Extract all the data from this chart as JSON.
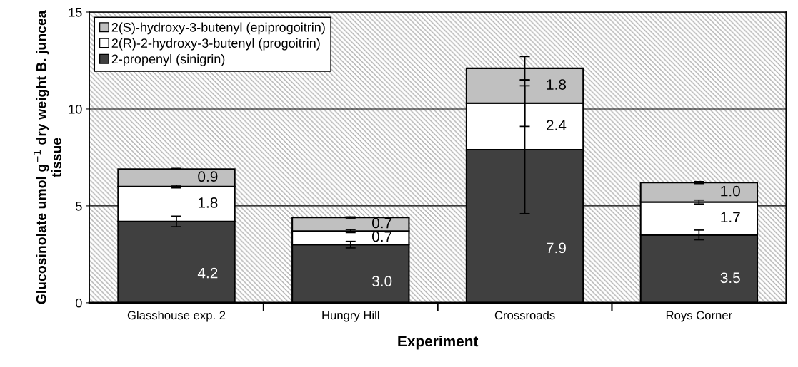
{
  "chart_data": {
    "type": "bar",
    "stacked": true,
    "xlabel": "Experiment",
    "ylabel": "Glucosinolate umol g$^{−1}$ dry weight B. juncea tissue",
    "categories": [
      "Glasshouse exp. 2",
      "Hungry Hill",
      "Crossroads",
      "Roys Corner"
    ],
    "series": [
      {
        "name": "2-propenyl (sinigrin)",
        "color": "#404040",
        "values": [
          4.2,
          3.0,
          7.9,
          3.5
        ],
        "value_labels": [
          "4.2",
          "3.0",
          "7.9",
          "3.5"
        ],
        "errors": [
          0.27,
          0.17,
          3.3,
          0.25
        ]
      },
      {
        "name": "2(R)-2-hydroxy-3-butenyl (progoitrin)",
        "color": "#ffffff",
        "values": [
          1.8,
          0.7,
          2.4,
          1.7
        ],
        "value_labels": [
          "1.8",
          "0.7",
          "2.4",
          "1.7"
        ],
        "errors": [
          0.07,
          0.08,
          1.2,
          0.1
        ]
      },
      {
        "name": "2(S)-hydroxy-3-butenyl (epiprogoitrin)",
        "color": "#c0c0c0",
        "values": [
          0.9,
          0.7,
          1.8,
          1.0
        ],
        "value_labels": [
          "0.9",
          "0.7",
          "1.8",
          "1.0"
        ],
        "errors": [
          0.03,
          0.03,
          0.6,
          0.05
        ]
      }
    ],
    "ylim": [
      0,
      15
    ],
    "yticks": [
      0,
      5,
      10,
      15
    ],
    "grid": "y",
    "legend": "top left"
  }
}
